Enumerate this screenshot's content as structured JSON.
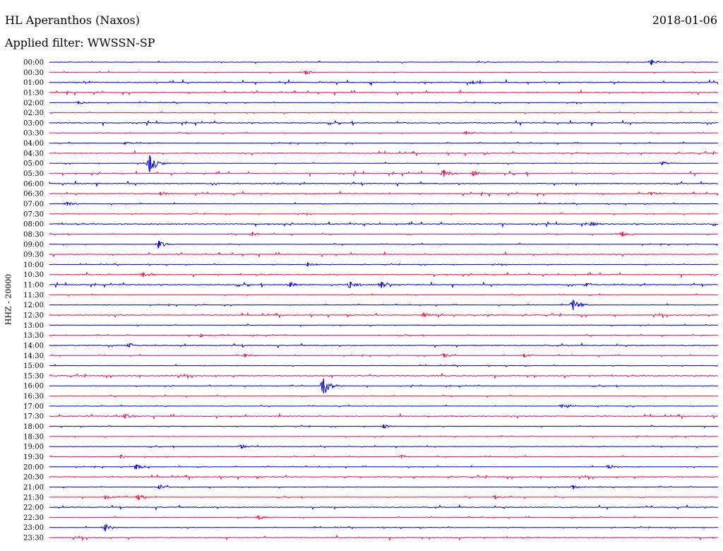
{
  "header": {
    "station": "HL Aperanthos (Naxos)",
    "date": "2018-01-06",
    "filter": "Applied filter: WWSSN-SP"
  },
  "channel_label": "HHZ - 20000",
  "colors": {
    "trace_a": "#0000e0",
    "trace_b": "#ee1144",
    "text": "#000000"
  },
  "chart_data": {
    "type": "line",
    "title": "HL Aperanthos (Naxos)",
    "subtitle": "Applied filter: WWSSN-SP",
    "ylabel": "HHZ - 20000",
    "row_labels": [
      "00:00",
      "00:30",
      "01:00",
      "01:30",
      "02:00",
      "02:30",
      "03:00",
      "03:30",
      "04:00",
      "04:30",
      "05:00",
      "05:30",
      "06:00",
      "06:30",
      "07:00",
      "07:30",
      "08:00",
      "08:30",
      "09:00",
      "09:30",
      "10:00",
      "10:30",
      "11:00",
      "11:30",
      "12:00",
      "12:30",
      "13:00",
      "13:30",
      "14:00",
      "14:30",
      "15:00",
      "15:30",
      "16:00",
      "16:30",
      "17:00",
      "17:30",
      "18:00",
      "18:30",
      "19:00",
      "19:30",
      "20:00",
      "20:30",
      "21:00",
      "21:30",
      "22:00",
      "22:30",
      "23:00",
      "23:30"
    ],
    "row_minutes": 30,
    "noise_level": [
      1,
      1,
      2,
      2,
      1,
      1,
      2,
      1,
      1,
      2,
      1,
      2,
      2,
      2,
      1,
      1,
      2,
      1,
      1,
      2,
      1,
      2,
      2,
      1,
      1,
      2,
      1,
      1,
      2,
      1,
      1,
      2,
      1,
      1,
      1,
      2,
      1,
      1,
      1,
      1,
      1,
      2,
      1,
      1,
      2,
      1,
      1,
      2
    ],
    "events": [
      {
        "row": 0,
        "minute": 27.0,
        "amp": 4
      },
      {
        "row": 1,
        "minute": 11.5,
        "amp": 3
      },
      {
        "row": 2,
        "minute": 19.0,
        "amp": 3
      },
      {
        "row": 4,
        "minute": 1.3,
        "amp": 3
      },
      {
        "row": 7,
        "minute": 18.7,
        "amp": 3
      },
      {
        "row": 8,
        "minute": 3.4,
        "amp": 2
      },
      {
        "row": 10,
        "minute": 4.5,
        "amp": 14
      },
      {
        "row": 10,
        "minute": 27.5,
        "amp": 3
      },
      {
        "row": 11,
        "minute": 17.7,
        "amp": 6
      },
      {
        "row": 11,
        "minute": 19.0,
        "amp": 4
      },
      {
        "row": 13,
        "minute": 5.0,
        "amp": 3
      },
      {
        "row": 13,
        "minute": 27.0,
        "amp": 3
      },
      {
        "row": 14,
        "minute": 0.8,
        "amp": 3
      },
      {
        "row": 16,
        "minute": 24.3,
        "amp": 3
      },
      {
        "row": 17,
        "minute": 9.1,
        "amp": 3
      },
      {
        "row": 17,
        "minute": 25.7,
        "amp": 4
      },
      {
        "row": 18,
        "minute": 4.9,
        "amp": 6
      },
      {
        "row": 20,
        "minute": 11.6,
        "amp": 3
      },
      {
        "row": 21,
        "minute": 4.2,
        "amp": 3
      },
      {
        "row": 22,
        "minute": 10.8,
        "amp": 4
      },
      {
        "row": 22,
        "minute": 13.5,
        "amp": 5
      },
      {
        "row": 22,
        "minute": 14.9,
        "amp": 5
      },
      {
        "row": 22,
        "minute": 24.1,
        "amp": 3
      },
      {
        "row": 24,
        "minute": 23.5,
        "amp": 9
      },
      {
        "row": 25,
        "minute": 16.8,
        "amp": 3
      },
      {
        "row": 27,
        "minute": 6.8,
        "amp": 3
      },
      {
        "row": 28,
        "minute": 3.6,
        "amp": 3
      },
      {
        "row": 29,
        "minute": 8.8,
        "amp": 3
      },
      {
        "row": 29,
        "minute": 17.7,
        "amp": 3
      },
      {
        "row": 29,
        "minute": 21.3,
        "amp": 3
      },
      {
        "row": 32,
        "minute": 12.3,
        "amp": 13
      },
      {
        "row": 34,
        "minute": 23.0,
        "amp": 3
      },
      {
        "row": 35,
        "minute": 3.4,
        "amp": 4
      },
      {
        "row": 36,
        "minute": 15.0,
        "amp": 3
      },
      {
        "row": 38,
        "minute": 8.6,
        "amp": 3
      },
      {
        "row": 39,
        "minute": 3.2,
        "amp": 3
      },
      {
        "row": 39,
        "minute": 15.8,
        "amp": 3
      },
      {
        "row": 40,
        "minute": 3.9,
        "amp": 4
      },
      {
        "row": 40,
        "minute": 25.1,
        "amp": 3
      },
      {
        "row": 42,
        "minute": 4.9,
        "amp": 3
      },
      {
        "row": 42,
        "minute": 23.5,
        "amp": 3
      },
      {
        "row": 43,
        "minute": 2.5,
        "amp": 3
      },
      {
        "row": 43,
        "minute": 4.0,
        "amp": 4
      },
      {
        "row": 43,
        "minute": 20.0,
        "amp": 3
      },
      {
        "row": 45,
        "minute": 9.4,
        "amp": 3
      },
      {
        "row": 46,
        "minute": 2.5,
        "amp": 5
      }
    ]
  }
}
